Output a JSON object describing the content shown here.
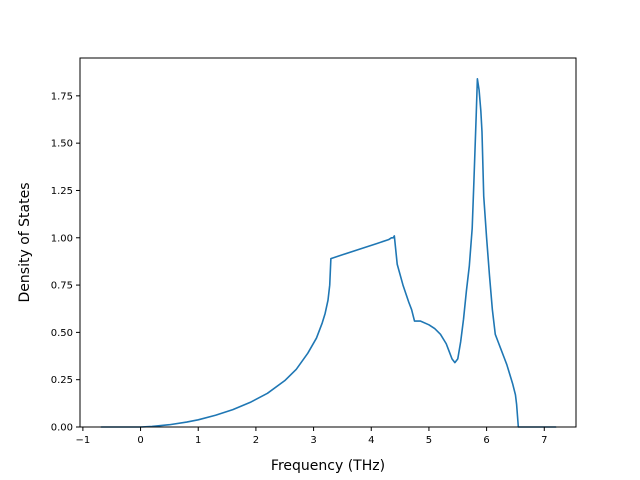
{
  "chart_data": {
    "type": "line",
    "title": "",
    "xlabel": "Frequency (THz)",
    "ylabel": "Density of States",
    "xlim": [
      -1.05,
      7.55
    ],
    "ylim": [
      0.0,
      1.95
    ],
    "grid": false,
    "legend": "none",
    "colors": {
      "line": "#1f77b4",
      "axes": "#000000",
      "background": "#ffffff"
    },
    "x_ticks": [
      -1,
      0,
      1,
      2,
      3,
      4,
      5,
      6,
      7
    ],
    "x_tick_labels": [
      "−1",
      "0",
      "1",
      "2",
      "3",
      "4",
      "5",
      "6",
      "7"
    ],
    "y_ticks": [
      0.0,
      0.25,
      0.5,
      0.75,
      1.0,
      1.25,
      1.5,
      1.75
    ],
    "y_tick_labels": [
      "0.00",
      "0.25",
      "0.50",
      "0.75",
      "1.00",
      "1.25",
      "1.50",
      "1.75"
    ],
    "series": [
      {
        "x": [
          -0.68,
          0.0,
          0.2,
          0.5,
          0.8,
          1.0,
          1.3,
          1.6,
          1.9,
          2.2,
          2.5,
          2.7,
          2.9,
          3.05,
          3.15,
          3.2,
          3.25,
          3.28,
          3.3,
          3.5,
          3.8,
          4.1,
          4.3,
          4.35,
          4.38,
          4.4,
          4.45,
          4.55,
          4.65,
          4.7,
          4.75,
          4.85,
          5.0,
          5.1,
          5.2,
          5.3,
          5.35,
          5.4,
          5.45,
          5.5,
          5.55,
          5.6,
          5.65,
          5.7,
          5.75,
          5.78,
          5.82,
          5.84,
          5.87,
          5.9,
          5.92,
          5.95,
          6.0,
          6.05,
          6.1,
          6.15,
          6.2,
          6.25,
          6.3,
          6.35,
          6.4,
          6.45,
          6.5,
          6.52,
          6.55,
          7.2
        ],
        "y": [
          0.0,
          0.0,
          0.003,
          0.012,
          0.026,
          0.038,
          0.062,
          0.092,
          0.13,
          0.178,
          0.245,
          0.305,
          0.39,
          0.47,
          0.55,
          0.6,
          0.67,
          0.75,
          0.89,
          0.91,
          0.94,
          0.97,
          0.99,
          1.0,
          1.0,
          1.01,
          0.86,
          0.75,
          0.66,
          0.62,
          0.56,
          0.56,
          0.54,
          0.52,
          0.49,
          0.44,
          0.4,
          0.36,
          0.34,
          0.36,
          0.45,
          0.57,
          0.72,
          0.85,
          1.05,
          1.3,
          1.65,
          1.84,
          1.78,
          1.67,
          1.56,
          1.22,
          1.0,
          0.8,
          0.62,
          0.49,
          0.45,
          0.41,
          0.37,
          0.33,
          0.28,
          0.23,
          0.17,
          0.12,
          0.0,
          0.0
        ]
      }
    ]
  }
}
